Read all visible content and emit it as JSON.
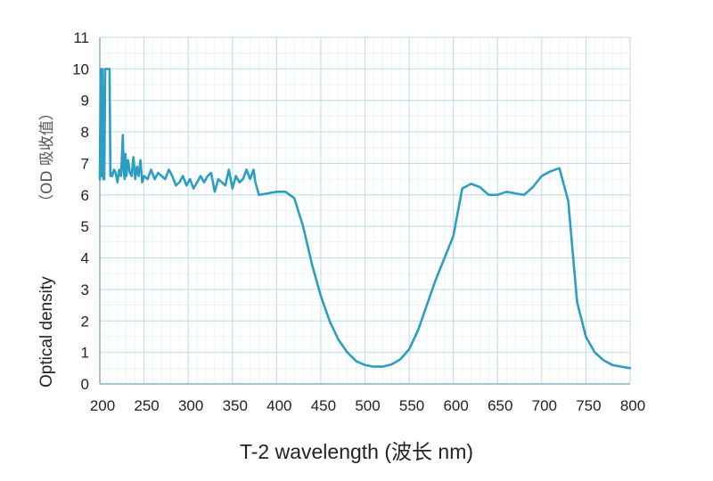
{
  "chart_data": {
    "type": "line",
    "title": "",
    "xlabel": "T-2 wavelength  (波长  nm)",
    "ylabel": "Optical density",
    "ylabel_cn": "（OD 吸收值）",
    "xlim": [
      200,
      800
    ],
    "ylim": [
      0,
      11
    ],
    "xticks": [
      "200",
      "250",
      "300",
      "350",
      "400",
      "450",
      "500",
      "550",
      "600",
      "650",
      "700",
      "750",
      "800"
    ],
    "yticks": [
      "0",
      "1",
      "2",
      "3",
      "4",
      "5",
      "6",
      "7",
      "8",
      "9",
      "10",
      "11"
    ],
    "grid": true,
    "line_color": "#2b9ec2",
    "grid_color": "#b9dbe6",
    "series": [
      {
        "name": "",
        "x": [
          200,
          201,
          202,
          203,
          204,
          205,
          206,
          207,
          208,
          209,
          210,
          211,
          212,
          213,
          214,
          216,
          218,
          220,
          222,
          224,
          225,
          226,
          227,
          228,
          229,
          230,
          232,
          234,
          236,
          238,
          240,
          242,
          244,
          246,
          248,
          250,
          254,
          258,
          262,
          266,
          270,
          274,
          278,
          282,
          286,
          290,
          294,
          298,
          302,
          306,
          310,
          314,
          318,
          322,
          326,
          330,
          334,
          338,
          342,
          346,
          350,
          354,
          358,
          362,
          366,
          370,
          374,
          376,
          378,
          380,
          390,
          400,
          410,
          420,
          430,
          440,
          450,
          460,
          470,
          480,
          490,
          500,
          510,
          520,
          530,
          540,
          550,
          560,
          570,
          580,
          590,
          600,
          610,
          620,
          630,
          640,
          650,
          660,
          670,
          680,
          690,
          700,
          710,
          720,
          730,
          740,
          750,
          760,
          770,
          780,
          790,
          800
        ],
        "y": [
          6.5,
          10.0,
          6.6,
          10.0,
          6.5,
          6.5,
          10.0,
          10.0,
          10.0,
          10.0,
          10.0,
          10.0,
          6.6,
          6.7,
          6.6,
          6.8,
          6.7,
          6.4,
          6.8,
          6.6,
          7.2,
          7.9,
          6.8,
          6.5,
          7.3,
          6.6,
          7.1,
          6.7,
          6.6,
          7.2,
          6.5,
          6.9,
          6.6,
          7.1,
          6.4,
          6.6,
          6.5,
          6.8,
          6.5,
          6.7,
          6.6,
          6.5,
          6.8,
          6.6,
          6.3,
          6.4,
          6.6,
          6.3,
          6.5,
          6.2,
          6.4,
          6.6,
          6.4,
          6.6,
          6.7,
          6.1,
          6.5,
          6.4,
          6.3,
          6.8,
          6.2,
          6.6,
          6.4,
          6.5,
          6.8,
          6.5,
          6.8,
          6.4,
          6.2,
          6.0,
          6.05,
          6.1,
          6.1,
          5.9,
          5.0,
          3.8,
          2.8,
          2.0,
          1.4,
          1.0,
          0.72,
          0.6,
          0.55,
          0.55,
          0.62,
          0.78,
          1.1,
          1.7,
          2.5,
          3.3,
          4.0,
          4.7,
          6.2,
          6.35,
          6.25,
          6.0,
          6.0,
          6.1,
          6.05,
          6.0,
          6.25,
          6.6,
          6.75,
          6.85,
          5.8,
          2.6,
          1.5,
          1.0,
          0.75,
          0.6,
          0.55,
          0.5
        ]
      }
    ]
  }
}
